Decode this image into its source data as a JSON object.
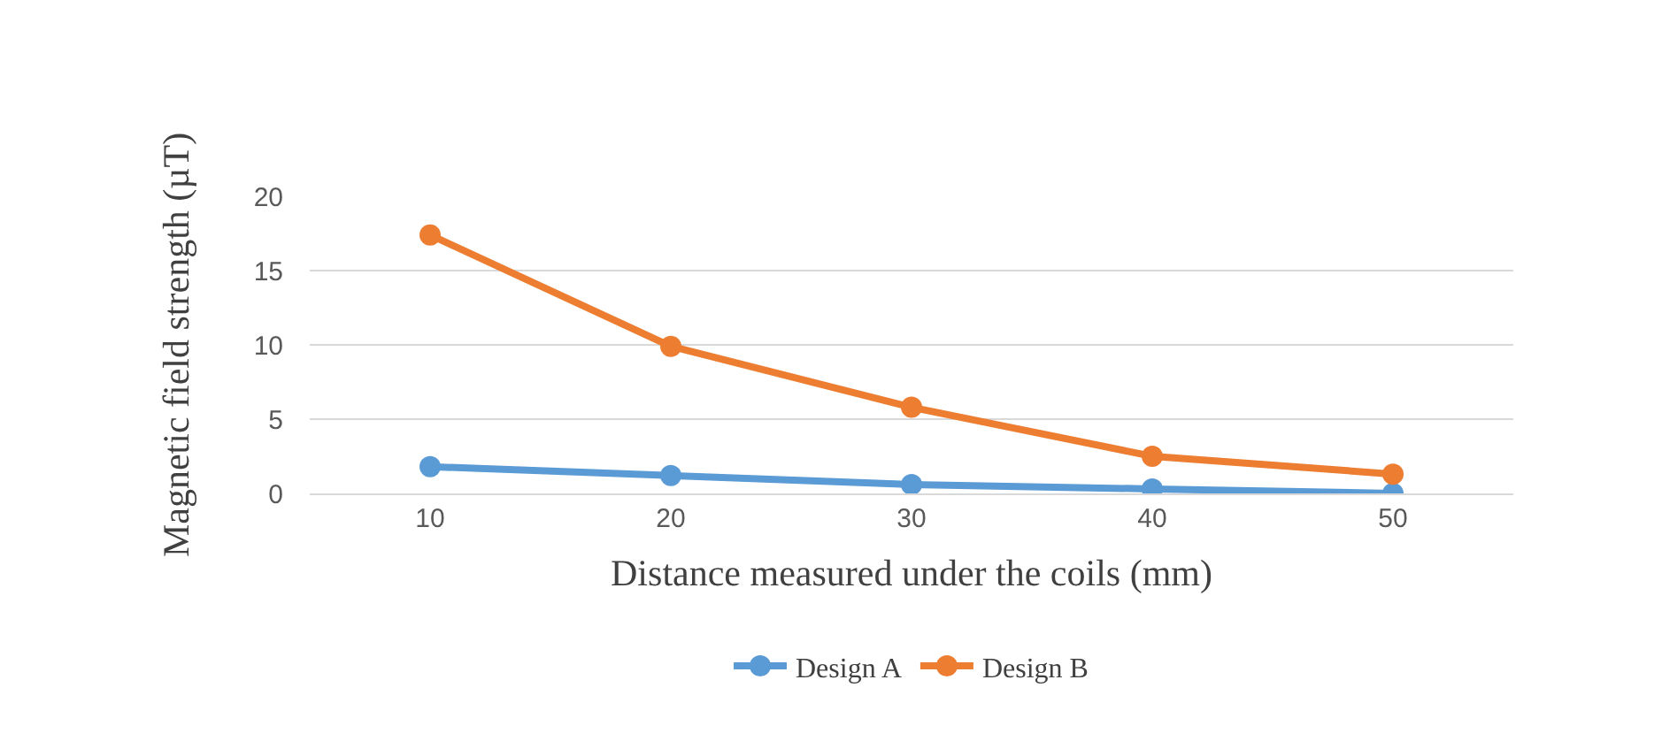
{
  "chart_data": {
    "type": "line",
    "xlabel": "Distance measured under the coils (mm)",
    "ylabel": "Magnetic field strength (µT)",
    "categories": [
      "10",
      "20",
      "30",
      "40",
      "50"
    ],
    "series": [
      {
        "name": "Design A",
        "color": "#5b9bd5",
        "values": [
          1.8,
          1.2,
          0.6,
          0.3,
          0.0
        ]
      },
      {
        "name": "Design B",
        "color": "#ed7d31",
        "values": [
          17.4,
          9.9,
          5.8,
          2.5,
          1.3
        ]
      }
    ],
    "ylim": [
      0,
      20
    ],
    "yticks": [
      0,
      5,
      10,
      15,
      20
    ],
    "grid": "y",
    "legend": "bottom",
    "marker": "circle",
    "line_style": "solid"
  }
}
